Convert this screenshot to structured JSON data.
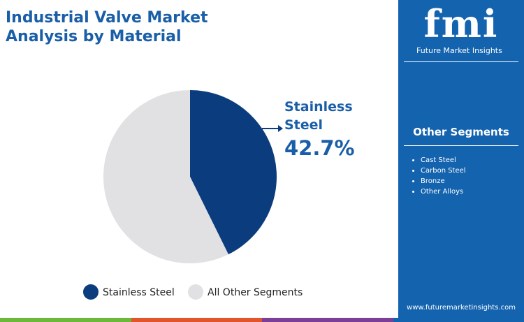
{
  "chart_data": {
    "type": "pie",
    "title": "Industrial Valve Market Analysis by Material",
    "categories": [
      "Stainless Steel",
      "All Other Segments"
    ],
    "values": [
      42.7,
      57.3
    ],
    "value_labels": [
      "42.7%",
      null
    ],
    "colors": [
      "#0b3c7d",
      "#e1e1e4"
    ],
    "legend": "bottom"
  },
  "side_panel": {
    "brand": "fmi",
    "brand_name": "Future Market Insights",
    "heading": "Other Segments",
    "items": [
      "Cast Steel",
      "Carbon Steel",
      "Bronze",
      "Other Alloys"
    ],
    "url": "www.futuremarketinsights.com"
  }
}
